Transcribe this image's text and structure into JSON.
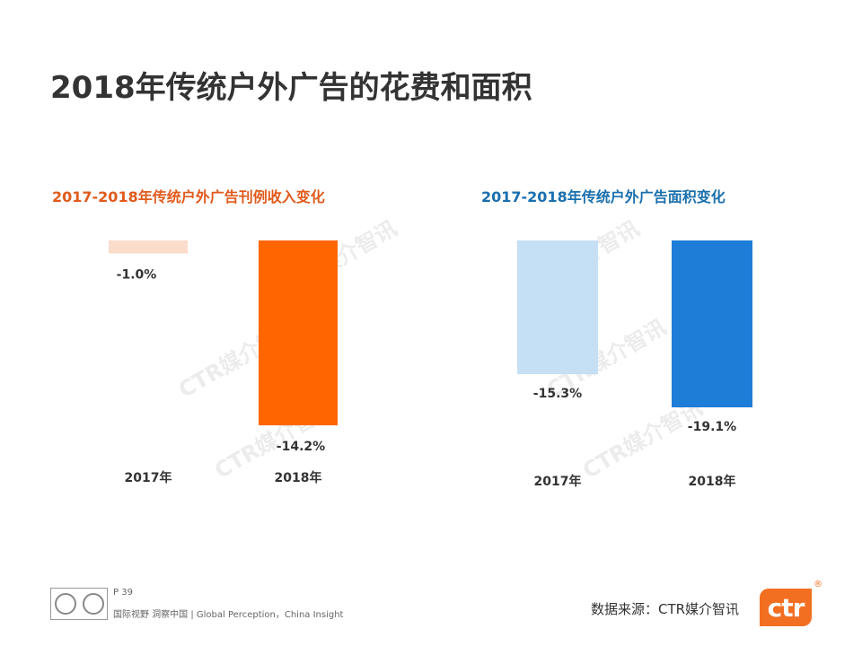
{
  "page": {
    "title": "2018年传统户外广告的花费和面积",
    "watermark": "CTR媒介智讯"
  },
  "chart_data": [
    {
      "type": "bar",
      "title": "2017-2018年传统户外广告刊例收入变化",
      "categories": [
        "2017年",
        "2018年"
      ],
      "values": [
        -1.0,
        -14.2
      ],
      "value_labels": [
        "-1.0%",
        "-14.2%"
      ],
      "colors": [
        "#fbdccb",
        "#ff6600"
      ],
      "title_color": "#e05a1c",
      "ylim": [
        -15.3,
        0
      ],
      "xlabel": "",
      "ylabel": ""
    },
    {
      "type": "bar",
      "title": "2017-2018年传统户外广告面积变化",
      "categories": [
        "2017年",
        "2018年"
      ],
      "values": [
        -15.3,
        -19.1
      ],
      "value_labels": [
        "-15.3%",
        "-19.1%"
      ],
      "colors": [
        "#c5dff5",
        "#1e7dd7"
      ],
      "title_color": "#1a6fad",
      "ylim": [
        -19.1,
        0
      ],
      "xlabel": "",
      "ylabel": ""
    }
  ],
  "footer": {
    "page_number": "P 39",
    "tagline": "国际视野  洞察中国 |  Global Perception，China Insight",
    "source": "数据来源：CTR媒介智讯",
    "logo_text": "ctr",
    "registered_mark": "®"
  }
}
